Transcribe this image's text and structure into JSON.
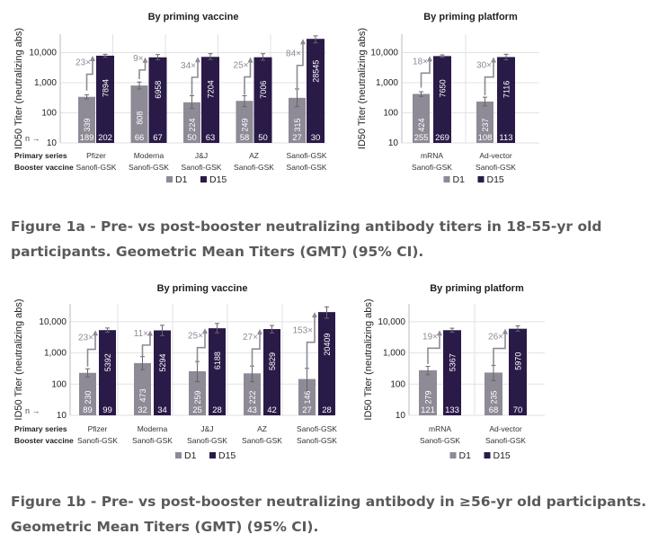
{
  "chart_data": [
    {
      "type": "bar",
      "title": "By priming vaccine",
      "ylabel": "ID50 Titer (neutralizing abs)",
      "yscale": "log",
      "ylim": [
        10,
        40000
      ],
      "yticks": [
        "10",
        "100",
        "1,000",
        "10,000"
      ],
      "ytick_values": [
        10,
        100,
        1000,
        10000
      ],
      "n_label": "n",
      "row_labels": [
        "Primary series",
        "Booster vaccine"
      ],
      "categories": [
        [
          "Pfizer",
          "Sanofi-GSK"
        ],
        [
          "Moderna",
          "Sanofi-GSK"
        ],
        [
          "J&J",
          "Sanofi-GSK"
        ],
        [
          "AZ",
          "Sanofi-GSK"
        ],
        [
          "Sanofi-GSK",
          "Sanofi-GSK"
        ]
      ],
      "series": [
        {
          "name": "D1",
          "color": "#8e8a96",
          "values": [
            339,
            808,
            224,
            249,
            315
          ],
          "n": [
            189,
            66,
            50,
            58,
            27
          ],
          "ci_low": [
            290,
            620,
            140,
            160,
            160
          ],
          "ci_high": [
            400,
            1050,
            370,
            370,
            620
          ]
        },
        {
          "name": "D15",
          "color": "#2a1a48",
          "values": [
            7894,
            6958,
            7204,
            7006,
            28545
          ],
          "n": [
            202,
            67,
            63,
            50,
            30
          ],
          "ci_low": [
            7000,
            5800,
            5900,
            5600,
            21000
          ],
          "ci_high": [
            8800,
            8600,
            9200,
            9200,
            36000
          ]
        }
      ],
      "fold_labels": [
        "23×",
        "9×",
        "34×",
        "25×",
        "84×"
      ],
      "legend": "bottom"
    },
    {
      "type": "bar",
      "title": "By priming platform",
      "ylabel": "ID50 Titer (neutralizing abs)",
      "yscale": "log",
      "ylim": [
        10,
        40000
      ],
      "yticks": [
        "10",
        "100",
        "1,000",
        "10,000"
      ],
      "ytick_values": [
        10,
        100,
        1000,
        10000
      ],
      "categories": [
        [
          "mRNA",
          "Sanofi-GSK"
        ],
        [
          "Ad-vector",
          "Sanofi-GSK"
        ]
      ],
      "series": [
        {
          "name": "D1",
          "color": "#8e8a96",
          "values": [
            424,
            237
          ],
          "n": [
            255,
            108
          ],
          "ci_low": [
            350,
            170
          ],
          "ci_high": [
            500,
            330
          ]
        },
        {
          "name": "D15",
          "color": "#2a1a48",
          "values": [
            7650,
            7116
          ],
          "n": [
            269,
            113
          ],
          "ci_low": [
            7000,
            5800
          ],
          "ci_high": [
            8400,
            8800
          ]
        }
      ],
      "fold_labels": [
        "18×",
        "30×"
      ],
      "legend": "bottom"
    },
    {
      "type": "bar",
      "title": "By priming vaccine",
      "ylabel": "ID50 Titer (neutralizing abs)",
      "yscale": "log",
      "ylim": [
        10,
        40000
      ],
      "yticks": [
        "10",
        "100",
        "1,000",
        "10,000"
      ],
      "ytick_values": [
        10,
        100,
        1000,
        10000
      ],
      "n_label": "n",
      "row_labels": [
        "Primary series",
        "Booster vaccine"
      ],
      "categories": [
        [
          "Pfizer",
          "Sanofi-GSK"
        ],
        [
          "Moderna",
          "Sanofi-GSK"
        ],
        [
          "J&J",
          "Sanofi-GSK"
        ],
        [
          "AZ",
          "Sanofi-GSK"
        ],
        [
          "Sanofi-GSK",
          "Sanofi-GSK"
        ]
      ],
      "series": [
        {
          "name": "D1",
          "color": "#8e8a96",
          "values": [
            230,
            473,
            259,
            222,
            146
          ],
          "n": [
            89,
            32,
            25,
            43,
            27
          ],
          "ci_low": [
            170,
            290,
            120,
            120,
            60
          ],
          "ci_high": [
            310,
            760,
            530,
            380,
            320
          ]
        },
        {
          "name": "D15",
          "color": "#2a1a48",
          "values": [
            5392,
            5294,
            6188,
            5829,
            20409
          ],
          "n": [
            99,
            34,
            28,
            42,
            28
          ],
          "ci_low": [
            4600,
            3600,
            4400,
            4400,
            13000
          ],
          "ci_high": [
            6300,
            7700,
            8800,
            7600,
            30000
          ]
        }
      ],
      "fold_labels": [
        "23×",
        "11×",
        "25×",
        "27×",
        "153×"
      ],
      "legend": "bottom"
    },
    {
      "type": "bar",
      "title": "By priming platform",
      "ylabel": "ID50 Titer (neutralizing abs)",
      "yscale": "log",
      "ylim": [
        10,
        40000
      ],
      "yticks": [
        "10",
        "100",
        "1,000",
        "10,000"
      ],
      "ytick_values": [
        10,
        100,
        1000,
        10000
      ],
      "categories": [
        [
          "mRNA",
          "Sanofi-GSK"
        ],
        [
          "Ad-vector",
          "Sanofi-GSK"
        ]
      ],
      "series": [
        {
          "name": "D1",
          "color": "#8e8a96",
          "values": [
            279,
            235
          ],
          "n": [
            121,
            68
          ],
          "ci_low": [
            200,
            130
          ],
          "ci_high": [
            370,
            400
          ]
        },
        {
          "name": "D15",
          "color": "#2a1a48",
          "values": [
            5367,
            5970
          ],
          "n": [
            133,
            70
          ],
          "ci_low": [
            4600,
            5000
          ],
          "ci_high": [
            6200,
            7400
          ]
        }
      ],
      "fold_labels": [
        "19×",
        "26×"
      ],
      "legend": "bottom"
    }
  ],
  "captions": {
    "fig1a": "Figure 1a - Pre- vs post-booster neutralizing antibody titers in 18-55-yr old participants. Geometric Mean Titers (GMT) (95% CI).",
    "fig1b": "Figure 1b - Pre- vs post-booster neutralizing antibody in ≥56-yr old participants. Geometric Mean Titers (GMT) (95% CI)."
  }
}
